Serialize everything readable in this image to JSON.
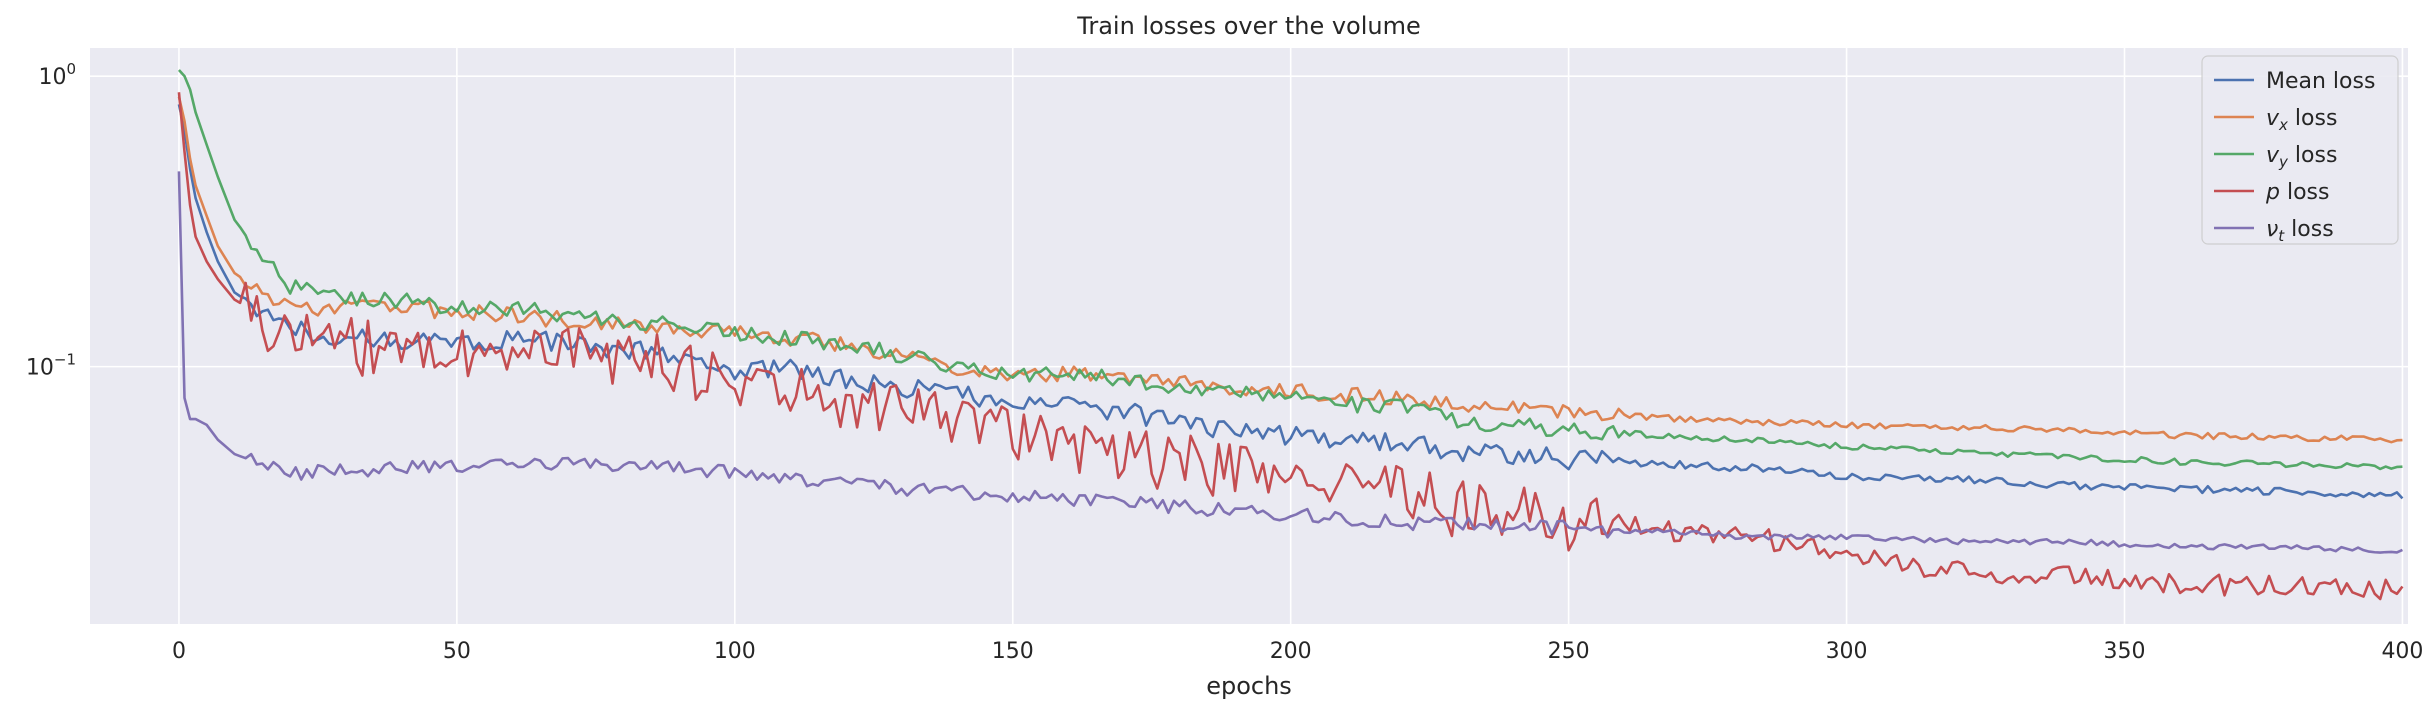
{
  "chart_data": {
    "type": "line",
    "title": "Train losses over the volume",
    "xlabel": "epochs",
    "ylabel": "",
    "yscale": "log",
    "xlim": [
      -16,
      401
    ],
    "ylim": [
      0.013,
      1.25
    ],
    "xticks": [
      0,
      50,
      100,
      150,
      200,
      250,
      300,
      350,
      400
    ],
    "xtick_labels": [
      "0",
      "50",
      "100",
      "150",
      "200",
      "250",
      "300",
      "350",
      "400"
    ],
    "yticks": [
      {
        "value": 1,
        "base": "10",
        "exp": "0"
      },
      {
        "value": 0.1,
        "base": "10",
        "exp": "−1"
      }
    ],
    "grid": true,
    "legend_position": "top-right",
    "series": [
      {
        "name": "Mean loss",
        "name_parts": {
          "sym": "",
          "sub": "",
          "rest": "Mean loss"
        },
        "color": "#4c72b0",
        "x": [
          0,
          1,
          2,
          3,
          5,
          7,
          10,
          15,
          20,
          30,
          40,
          50,
          60,
          70,
          80,
          90,
          100,
          110,
          120,
          130,
          140,
          150,
          160,
          170,
          180,
          190,
          200,
          210,
          220,
          225,
          230,
          240,
          250,
          260,
          270,
          280,
          290,
          300,
          320,
          340,
          360,
          380,
          400
        ],
        "y": [
          0.8,
          0.65,
          0.48,
          0.38,
          0.29,
          0.23,
          0.18,
          0.155,
          0.135,
          0.125,
          0.125,
          0.12,
          0.125,
          0.12,
          0.115,
          0.11,
          0.095,
          0.1,
          0.09,
          0.085,
          0.08,
          0.078,
          0.075,
          0.07,
          0.065,
          0.06,
          0.058,
          0.056,
          0.055,
          0.054,
          0.05,
          0.05,
          0.048,
          0.047,
          0.046,
          0.045,
          0.044,
          0.042,
          0.041,
          0.039,
          0.038,
          0.037,
          0.036
        ],
        "y_wiggle": 0.05
      },
      {
        "name": "v_x loss",
        "name_parts": {
          "sym": "v",
          "sub": "x",
          "rest": " loss"
        },
        "color": "#dd8452",
        "x": [
          0,
          1,
          2,
          3,
          5,
          7,
          10,
          15,
          20,
          30,
          40,
          50,
          60,
          70,
          80,
          90,
          100,
          110,
          120,
          130,
          140,
          150,
          160,
          170,
          180,
          190,
          200,
          210,
          220,
          225,
          230,
          240,
          250,
          260,
          270,
          280,
          290,
          300,
          320,
          340,
          360,
          380,
          400
        ],
        "y": [
          0.85,
          0.7,
          0.52,
          0.42,
          0.33,
          0.26,
          0.21,
          0.18,
          0.16,
          0.16,
          0.16,
          0.155,
          0.15,
          0.145,
          0.14,
          0.135,
          0.13,
          0.125,
          0.12,
          0.11,
          0.1,
          0.095,
          0.095,
          0.09,
          0.088,
          0.085,
          0.082,
          0.08,
          0.078,
          0.077,
          0.072,
          0.072,
          0.07,
          0.068,
          0.066,
          0.065,
          0.064,
          0.063,
          0.062,
          0.06,
          0.058,
          0.057,
          0.056
        ],
        "y_wiggle": 0.04
      },
      {
        "name": "v_y loss",
        "name_parts": {
          "sym": "v",
          "sub": "y",
          "rest": " loss"
        },
        "color": "#55a868",
        "x": [
          0,
          1,
          2,
          3,
          5,
          7,
          10,
          15,
          20,
          30,
          40,
          50,
          60,
          70,
          80,
          90,
          100,
          110,
          120,
          130,
          140,
          150,
          160,
          170,
          180,
          190,
          200,
          210,
          220,
          225,
          230,
          240,
          250,
          260,
          270,
          280,
          290,
          300,
          320,
          340,
          360,
          380,
          400
        ],
        "y": [
          1.05,
          1.0,
          0.9,
          0.75,
          0.58,
          0.45,
          0.32,
          0.24,
          0.19,
          0.17,
          0.17,
          0.16,
          0.16,
          0.15,
          0.145,
          0.14,
          0.13,
          0.125,
          0.12,
          0.11,
          0.1,
          0.095,
          0.095,
          0.09,
          0.085,
          0.082,
          0.078,
          0.075,
          0.072,
          0.07,
          0.065,
          0.063,
          0.061,
          0.059,
          0.057,
          0.056,
          0.055,
          0.053,
          0.051,
          0.049,
          0.047,
          0.046,
          0.045
        ],
        "y_wiggle": 0.04
      },
      {
        "name": "p loss",
        "name_parts": {
          "sym": "p",
          "sub": "",
          "rest": " loss"
        },
        "color": "#c44e52",
        "x": [
          0,
          1,
          2,
          3,
          5,
          7,
          10,
          15,
          20,
          30,
          40,
          50,
          60,
          70,
          80,
          90,
          100,
          110,
          120,
          130,
          140,
          150,
          160,
          170,
          180,
          190,
          200,
          210,
          220,
          225,
          230,
          240,
          250,
          260,
          270,
          280,
          290,
          300,
          320,
          340,
          360,
          380,
          400
        ],
        "y": [
          0.88,
          0.55,
          0.36,
          0.28,
          0.23,
          0.2,
          0.17,
          0.15,
          0.13,
          0.12,
          0.12,
          0.115,
          0.115,
          0.115,
          0.11,
          0.105,
          0.085,
          0.085,
          0.075,
          0.07,
          0.065,
          0.06,
          0.055,
          0.05,
          0.048,
          0.045,
          0.042,
          0.04,
          0.038,
          0.036,
          0.033,
          0.032,
          0.03,
          0.029,
          0.027,
          0.026,
          0.025,
          0.022,
          0.02,
          0.019,
          0.018,
          0.0175,
          0.017
        ],
        "y_wiggle": 0.14
      },
      {
        "name": "ν_t loss",
        "name_parts": {
          "sym": "ν",
          "sub": "t",
          "rest": " loss"
        },
        "color": "#8172b3",
        "x": [
          0,
          1,
          2,
          3,
          5,
          7,
          10,
          15,
          20,
          30,
          40,
          50,
          60,
          70,
          80,
          90,
          100,
          110,
          120,
          130,
          140,
          150,
          160,
          170,
          180,
          190,
          200,
          210,
          220,
          225,
          230,
          240,
          250,
          260,
          270,
          280,
          290,
          300,
          320,
          340,
          360,
          380,
          400
        ],
        "y": [
          0.47,
          0.078,
          0.066,
          0.066,
          0.063,
          0.056,
          0.05,
          0.046,
          0.043,
          0.044,
          0.045,
          0.046,
          0.046,
          0.046,
          0.045,
          0.045,
          0.043,
          0.041,
          0.04,
          0.038,
          0.037,
          0.036,
          0.035,
          0.034,
          0.033,
          0.032,
          0.031,
          0.03,
          0.029,
          0.029,
          0.029,
          0.028,
          0.028,
          0.027,
          0.027,
          0.026,
          0.026,
          0.026,
          0.025,
          0.025,
          0.024,
          0.024,
          0.023
        ],
        "y_wiggle": 0.035
      }
    ]
  }
}
